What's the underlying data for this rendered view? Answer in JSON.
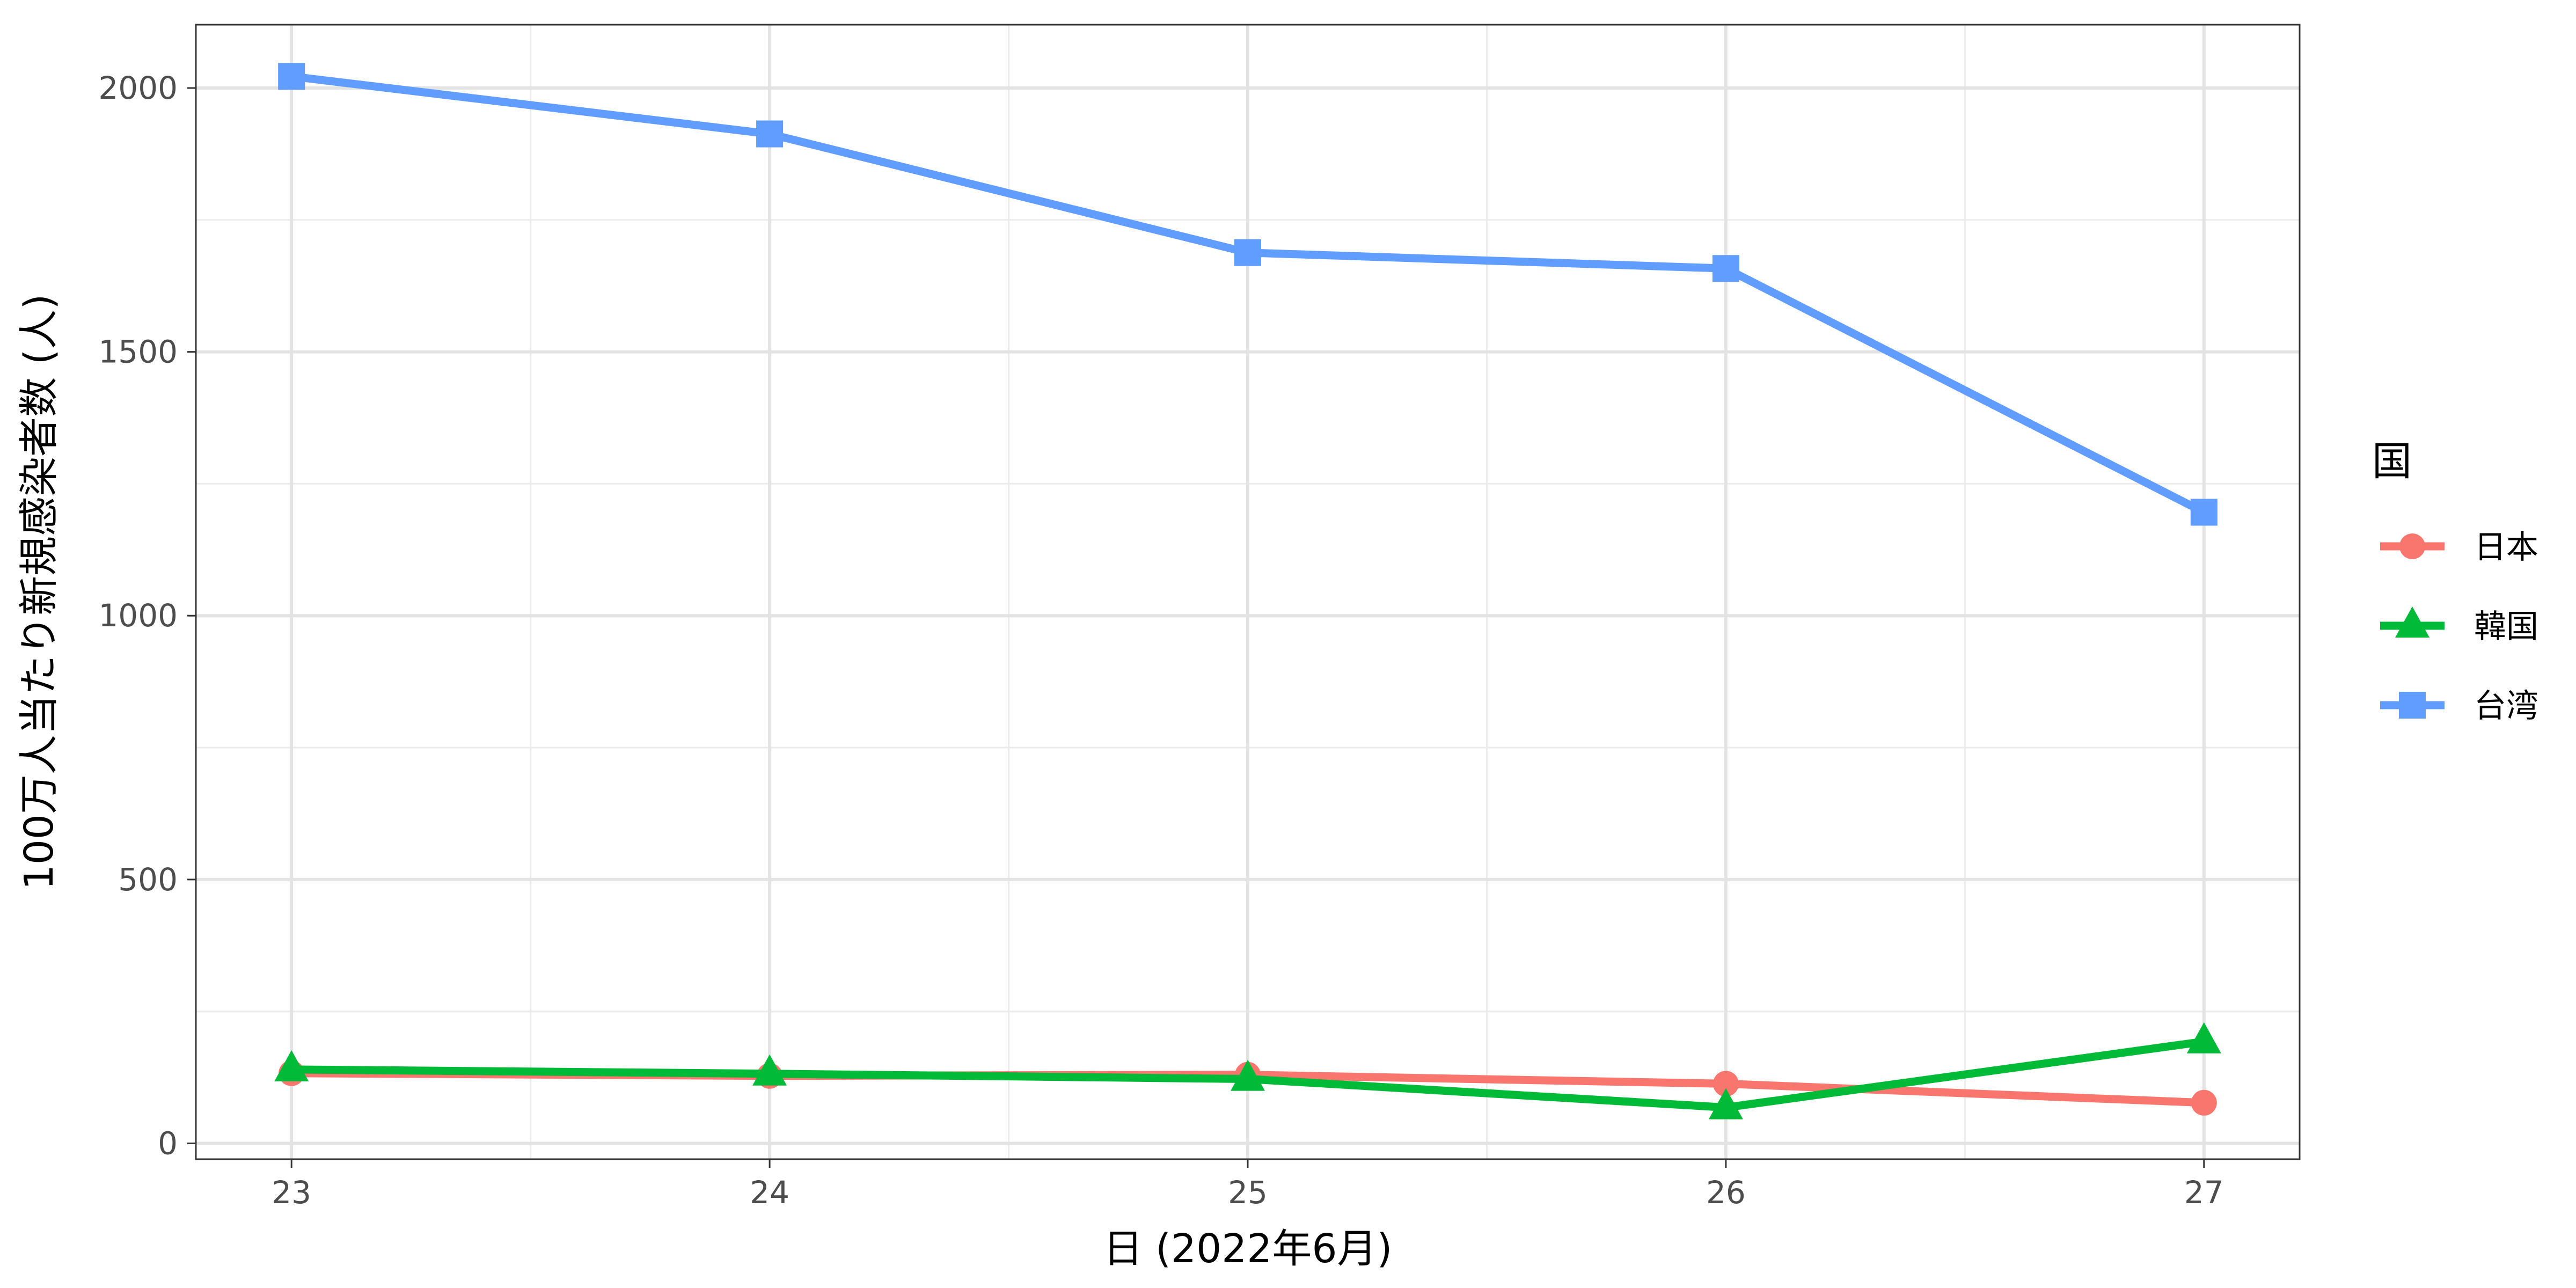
{
  "chart_data": {
    "type": "line",
    "title": "",
    "xlabel": "日 (2022年6月)",
    "ylabel": "100万人当たり新規感染者数 (人)",
    "x": [
      23,
      24,
      25,
      26,
      27
    ],
    "x_tick_labels": [
      "23",
      "24",
      "25",
      "26",
      "27"
    ],
    "y_ticks": [
      0,
      500,
      1000,
      1500,
      2000
    ],
    "y_tick_labels": [
      "0",
      "500",
      "1000",
      "1500",
      "2000"
    ],
    "xlim": [
      22.8,
      27.2
    ],
    "ylim": [
      -30,
      2120
    ],
    "grid": true,
    "legend": {
      "title": "国",
      "placement": "right"
    },
    "series": [
      {
        "name": "日本",
        "color": "#F8766D",
        "marker": "circle",
        "values": [
          133,
          128,
          130,
          113,
          77
        ]
      },
      {
        "name": "韓国",
        "color": "#00BA38",
        "marker": "triangle",
        "values": [
          140,
          132,
          122,
          68,
          193
        ]
      },
      {
        "name": "台湾",
        "color": "#619CFF",
        "marker": "square",
        "values": [
          2022,
          1913,
          1688,
          1658,
          1196
        ]
      }
    ]
  }
}
